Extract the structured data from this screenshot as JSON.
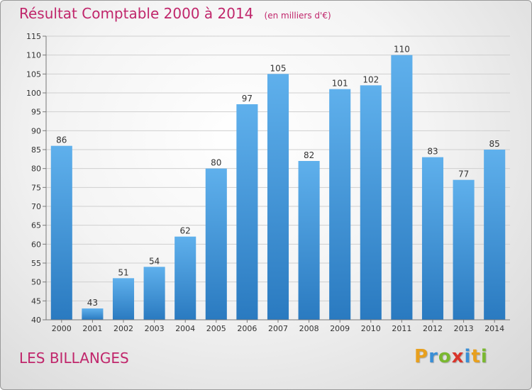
{
  "chart_data": {
    "type": "bar",
    "title": "Résultat Comptable 2000 à 2014",
    "subtitle": "(en milliers d'€)",
    "categories": [
      "2000",
      "2001",
      "2002",
      "2003",
      "2004",
      "2005",
      "2006",
      "2007",
      "2008",
      "2009",
      "2010",
      "2011",
      "2012",
      "2013",
      "2014"
    ],
    "values": [
      86,
      43,
      51,
      54,
      62,
      80,
      97,
      105,
      82,
      101,
      102,
      110,
      83,
      77,
      85
    ],
    "ylim": [
      40,
      115
    ],
    "yticks": [
      40,
      45,
      50,
      55,
      60,
      65,
      70,
      75,
      80,
      85,
      90,
      95,
      100,
      105,
      110,
      115
    ],
    "grid": true,
    "bar_color": "#3a8fd6"
  },
  "footer": {
    "place_name": "LES BILLANGES",
    "logo_letters": [
      "P",
      "r",
      "o",
      "x",
      "i",
      "t",
      "i"
    ],
    "logo_colors": [
      "#e8a01e",
      "#3a8fd6",
      "#7ab830",
      "#d9352b",
      "#3a8fd6",
      "#e8a01e",
      "#7ab830"
    ]
  }
}
